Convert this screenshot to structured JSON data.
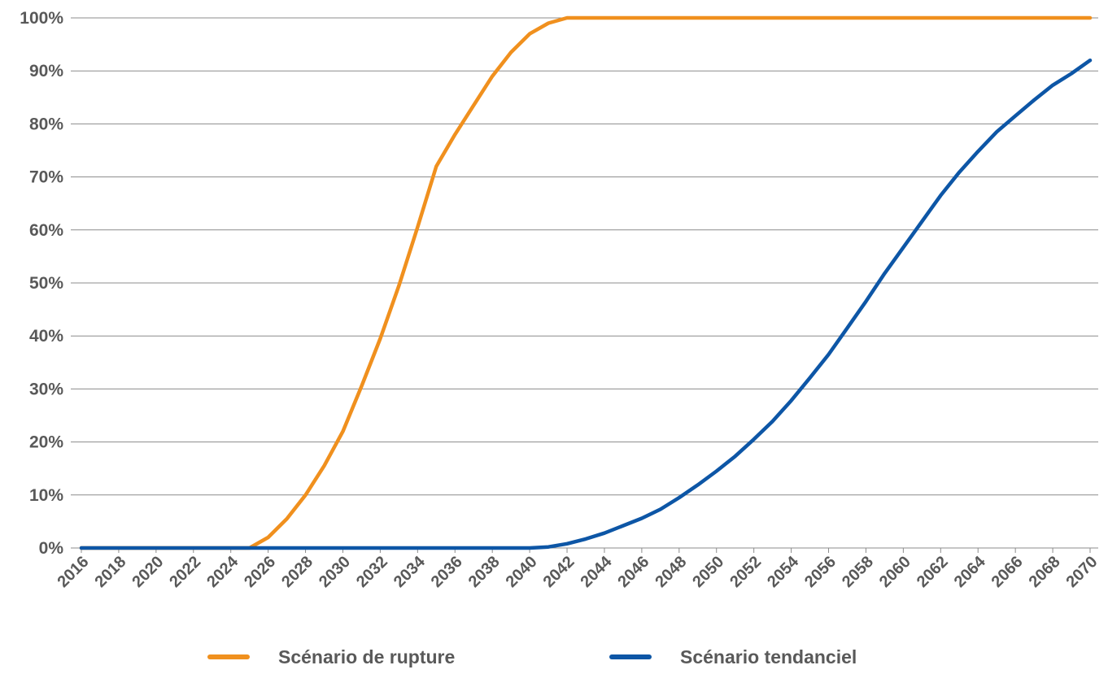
{
  "chart_data": {
    "type": "line",
    "title": "",
    "xlabel": "",
    "ylabel": "",
    "x": [
      2016,
      2017,
      2018,
      2019,
      2020,
      2021,
      2022,
      2023,
      2024,
      2025,
      2026,
      2027,
      2028,
      2029,
      2030,
      2031,
      2032,
      2033,
      2034,
      2035,
      2036,
      2037,
      2038,
      2039,
      2040,
      2041,
      2042,
      2043,
      2044,
      2045,
      2046,
      2047,
      2048,
      2049,
      2050,
      2051,
      2052,
      2053,
      2054,
      2055,
      2056,
      2057,
      2058,
      2059,
      2060,
      2061,
      2062,
      2063,
      2064,
      2065,
      2066,
      2067,
      2068,
      2069,
      2070
    ],
    "x_tick_labels": [
      "2016",
      "2018",
      "2020",
      "2022",
      "2024",
      "2026",
      "2028",
      "2030",
      "2032",
      "2034",
      "2036",
      "2038",
      "2040",
      "2042",
      "2044",
      "2046",
      "2048",
      "2050",
      "2052",
      "2054",
      "2056",
      "2058",
      "2060",
      "2062",
      "2064",
      "2066",
      "2068",
      "2070"
    ],
    "y_tick_labels": [
      "0%",
      "10%",
      "20%",
      "30%",
      "40%",
      "50%",
      "60%",
      "70%",
      "80%",
      "90%",
      "100%"
    ],
    "ylim": [
      0,
      100
    ],
    "y_unit": "%",
    "grid": true,
    "legend_position": "bottom",
    "series": [
      {
        "name": "Scénario de rupture",
        "color": "#f0901e",
        "values": [
          0,
          0,
          0,
          0,
          0,
          0,
          0,
          0,
          0,
          0,
          2,
          5.5,
          10,
          15.5,
          22,
          30.5,
          39.5,
          49.5,
          60.5,
          72,
          78,
          83.5,
          89,
          93.5,
          97,
          99,
          100,
          100,
          100,
          100,
          100,
          100,
          100,
          100,
          100,
          100,
          100,
          100,
          100,
          100,
          100,
          100,
          100,
          100,
          100,
          100,
          100,
          100,
          100,
          100,
          100,
          100,
          100,
          100,
          100
        ]
      },
      {
        "name": "Scénario tendanciel",
        "color": "#0d56a6",
        "values": [
          0,
          0,
          0,
          0,
          0,
          0,
          0,
          0,
          0,
          0,
          0,
          0,
          0,
          0,
          0,
          0,
          0,
          0,
          0,
          0,
          0,
          0,
          0,
          0,
          0,
          0.2,
          0.8,
          1.7,
          2.8,
          4.2,
          5.6,
          7.3,
          9.5,
          11.9,
          14.5,
          17.3,
          20.5,
          23.9,
          27.8,
          32.1,
          36.5,
          41.5,
          46.5,
          51.8,
          56.7,
          61.6,
          66.5,
          70.9,
          74.8,
          78.5,
          81.5,
          84.5,
          87.3,
          89.5,
          92
        ]
      }
    ]
  }
}
